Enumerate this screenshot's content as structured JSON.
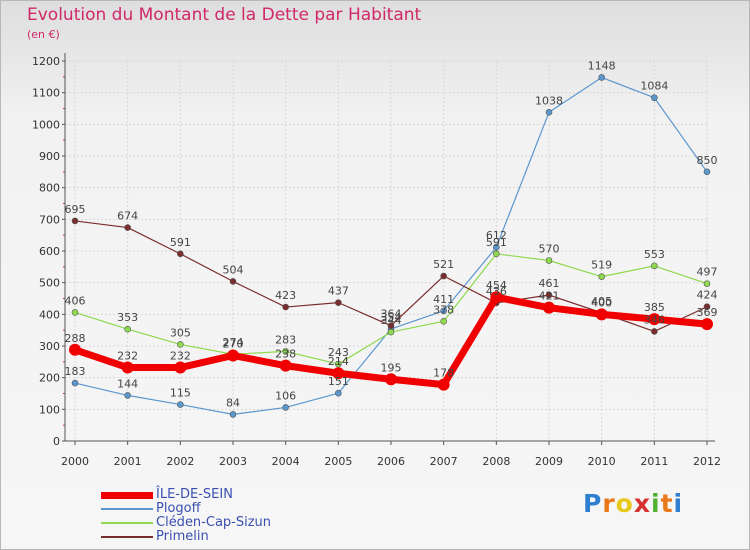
{
  "chart_data": {
    "type": "line",
    "title": "Evolution du Montant de la Dette par Habitant",
    "subtitle": "(en €)",
    "categories": [
      "2000",
      "2001",
      "2002",
      "2003",
      "2004",
      "2005",
      "2006",
      "2007",
      "2008",
      "2009",
      "2010",
      "2011",
      "2012"
    ],
    "ylim": [
      0,
      1200
    ],
    "yticks": [
      0,
      100,
      200,
      300,
      400,
      500,
      600,
      700,
      800,
      900,
      1000,
      1100,
      1200
    ],
    "grid": true,
    "legend_position": "bottom-left",
    "series": [
      {
        "name": "ÎLE-DE-SEIN",
        "color": "#f00000",
        "values": [
          288,
          232,
          232,
          270,
          238,
          214,
          195,
          178,
          454,
          421,
          400,
          385,
          369
        ]
      },
      {
        "name": "Plogoff",
        "color": "#5b97cf",
        "values": [
          183,
          144,
          115,
          84,
          106,
          151,
          354,
          411,
          612,
          1038,
          1148,
          1084,
          850
        ]
      },
      {
        "name": "Cléden-Cap-Sizun",
        "color": "#8ed94d",
        "values": [
          406,
          353,
          305,
          274,
          283,
          243,
          344,
          378,
          591,
          570,
          519,
          553,
          497
        ]
      },
      {
        "name": "Primelin",
        "color": "#7a2d2d",
        "values": [
          695,
          674,
          591,
          504,
          423,
          437,
          364,
          521,
          436,
          461,
          405,
          346,
          424
        ]
      }
    ]
  },
  "brand": {
    "letters": [
      "P",
      "r",
      "o",
      "x",
      "i",
      "t",
      "i"
    ],
    "colors": [
      "#2f7fd0",
      "#e87818",
      "#e8c818",
      "#d83030",
      "#50b030",
      "#e87818",
      "#2f7fd0"
    ]
  }
}
